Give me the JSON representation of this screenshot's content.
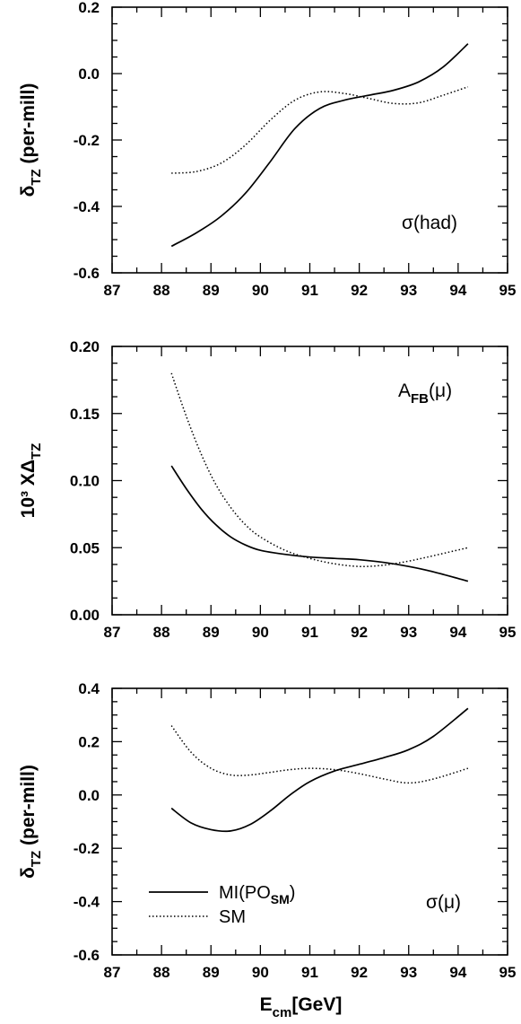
{
  "chart_data": [
    {
      "type": "line",
      "xlim": [
        87,
        95
      ],
      "ylim": [
        -0.6,
        0.2
      ],
      "x_ticks": [
        87,
        88,
        89,
        90,
        91,
        92,
        93,
        94,
        95
      ],
      "x_tick_labels": [
        "87",
        "88",
        "89",
        "90",
        "91",
        "92",
        "93",
        "94",
        "95"
      ],
      "y_ticks": [
        -0.6,
        -0.4,
        -0.2,
        0.0,
        0.2
      ],
      "y_tick_labels": [
        "-0.6",
        "-0.4",
        "-0.2",
        "0.0",
        "0.2"
      ],
      "ylabel": {
        "base": "δ",
        "sub": "TZ",
        "rest": " (per-mill)"
      },
      "annotation": {
        "base": "σ(had)",
        "sub": ""
      },
      "series": [
        {
          "style": "solid",
          "x": [
            88.2,
            88.7,
            89.2,
            89.7,
            90.2,
            90.7,
            91.2,
            91.7,
            92.2,
            92.7,
            93.2,
            93.7,
            94.2
          ],
          "y": [
            -0.52,
            -0.48,
            -0.43,
            -0.36,
            -0.265,
            -0.165,
            -0.105,
            -0.08,
            -0.065,
            -0.05,
            -0.025,
            0.02,
            0.09
          ]
        },
        {
          "style": "dotted",
          "x": [
            88.2,
            88.7,
            89.2,
            89.7,
            90.2,
            90.7,
            91.2,
            91.7,
            92.2,
            92.7,
            93.2,
            93.7,
            94.2
          ],
          "y": [
            -0.3,
            -0.295,
            -0.27,
            -0.215,
            -0.14,
            -0.08,
            -0.055,
            -0.06,
            -0.075,
            -0.09,
            -0.088,
            -0.065,
            -0.04
          ]
        }
      ]
    },
    {
      "type": "line",
      "xlim": [
        87,
        95
      ],
      "ylim": [
        0.0,
        0.2
      ],
      "x_ticks": [
        87,
        88,
        89,
        90,
        91,
        92,
        93,
        94,
        95
      ],
      "x_tick_labels": [
        "87",
        "88",
        "89",
        "90",
        "91",
        "92",
        "93",
        "94",
        "95"
      ],
      "y_ticks": [
        0.0,
        0.05,
        0.1,
        0.15,
        0.2
      ],
      "y_tick_labels": [
        "0.00",
        "0.05",
        "0.10",
        "0.15",
        "0.20"
      ],
      "ylabel": {
        "base": "10³ XΔ",
        "sub": "TZ",
        "rest": ""
      },
      "annotation": {
        "base": "A",
        "sub": "FB",
        "rest": "(μ)"
      },
      "series": [
        {
          "style": "solid",
          "x": [
            88.2,
            88.5,
            88.8,
            89.1,
            89.4,
            89.7,
            90.0,
            90.5,
            91.0,
            91.5,
            92.0,
            92.5,
            93.0,
            93.5,
            94.2
          ],
          "y": [
            0.111,
            0.094,
            0.079,
            0.067,
            0.058,
            0.052,
            0.048,
            0.045,
            0.043,
            0.042,
            0.041,
            0.039,
            0.036,
            0.032,
            0.025
          ]
        },
        {
          "style": "dotted",
          "x": [
            88.2,
            88.5,
            88.8,
            89.1,
            89.4,
            89.7,
            90.0,
            90.5,
            91.0,
            91.5,
            92.0,
            92.5,
            93.0,
            93.5,
            94.2
          ],
          "y": [
            0.18,
            0.148,
            0.12,
            0.097,
            0.08,
            0.067,
            0.058,
            0.048,
            0.042,
            0.038,
            0.036,
            0.037,
            0.04,
            0.044,
            0.05
          ]
        }
      ]
    },
    {
      "type": "line",
      "xlim": [
        87,
        95
      ],
      "ylim": [
        -0.6,
        0.4
      ],
      "x_ticks": [
        87,
        88,
        89,
        90,
        91,
        92,
        93,
        94,
        95
      ],
      "x_tick_labels": [
        "87",
        "88",
        "89",
        "90",
        "91",
        "92",
        "93",
        "94",
        "95"
      ],
      "y_ticks": [
        -0.6,
        -0.4,
        -0.2,
        0.0,
        0.2,
        0.4
      ],
      "y_tick_labels": [
        "-0.6",
        "-0.4",
        "-0.2",
        "0.0",
        "0.2",
        "0.4"
      ],
      "ylabel": {
        "base": "δ",
        "sub": "TZ",
        "rest": " (per-mill)"
      },
      "xlabel": {
        "base": "E",
        "sub": "cm",
        "rest": "[GeV]"
      },
      "annotation": {
        "base": "σ(μ)",
        "sub": ""
      },
      "legend": [
        {
          "style": "solid",
          "base": "MI(PO",
          "sub": "SM",
          "rest": ")"
        },
        {
          "style": "dotted",
          "base": "SM",
          "sub": "",
          "rest": ""
        }
      ],
      "series": [
        {
          "style": "solid",
          "x": [
            88.2,
            88.6,
            89.0,
            89.4,
            89.8,
            90.2,
            90.6,
            91.0,
            91.5,
            92.0,
            92.5,
            93.0,
            93.5,
            94.2
          ],
          "y": [
            -0.05,
            -0.105,
            -0.13,
            -0.135,
            -0.11,
            -0.06,
            0.0,
            0.05,
            0.09,
            0.115,
            0.14,
            0.17,
            0.22,
            0.325
          ]
        },
        {
          "style": "dotted",
          "x": [
            88.2,
            88.6,
            89.0,
            89.4,
            89.8,
            90.2,
            90.6,
            91.0,
            91.5,
            92.0,
            92.5,
            93.0,
            93.5,
            94.2
          ],
          "y": [
            0.26,
            0.16,
            0.1,
            0.075,
            0.075,
            0.085,
            0.095,
            0.1,
            0.095,
            0.08,
            0.06,
            0.045,
            0.06,
            0.1
          ]
        }
      ]
    }
  ]
}
